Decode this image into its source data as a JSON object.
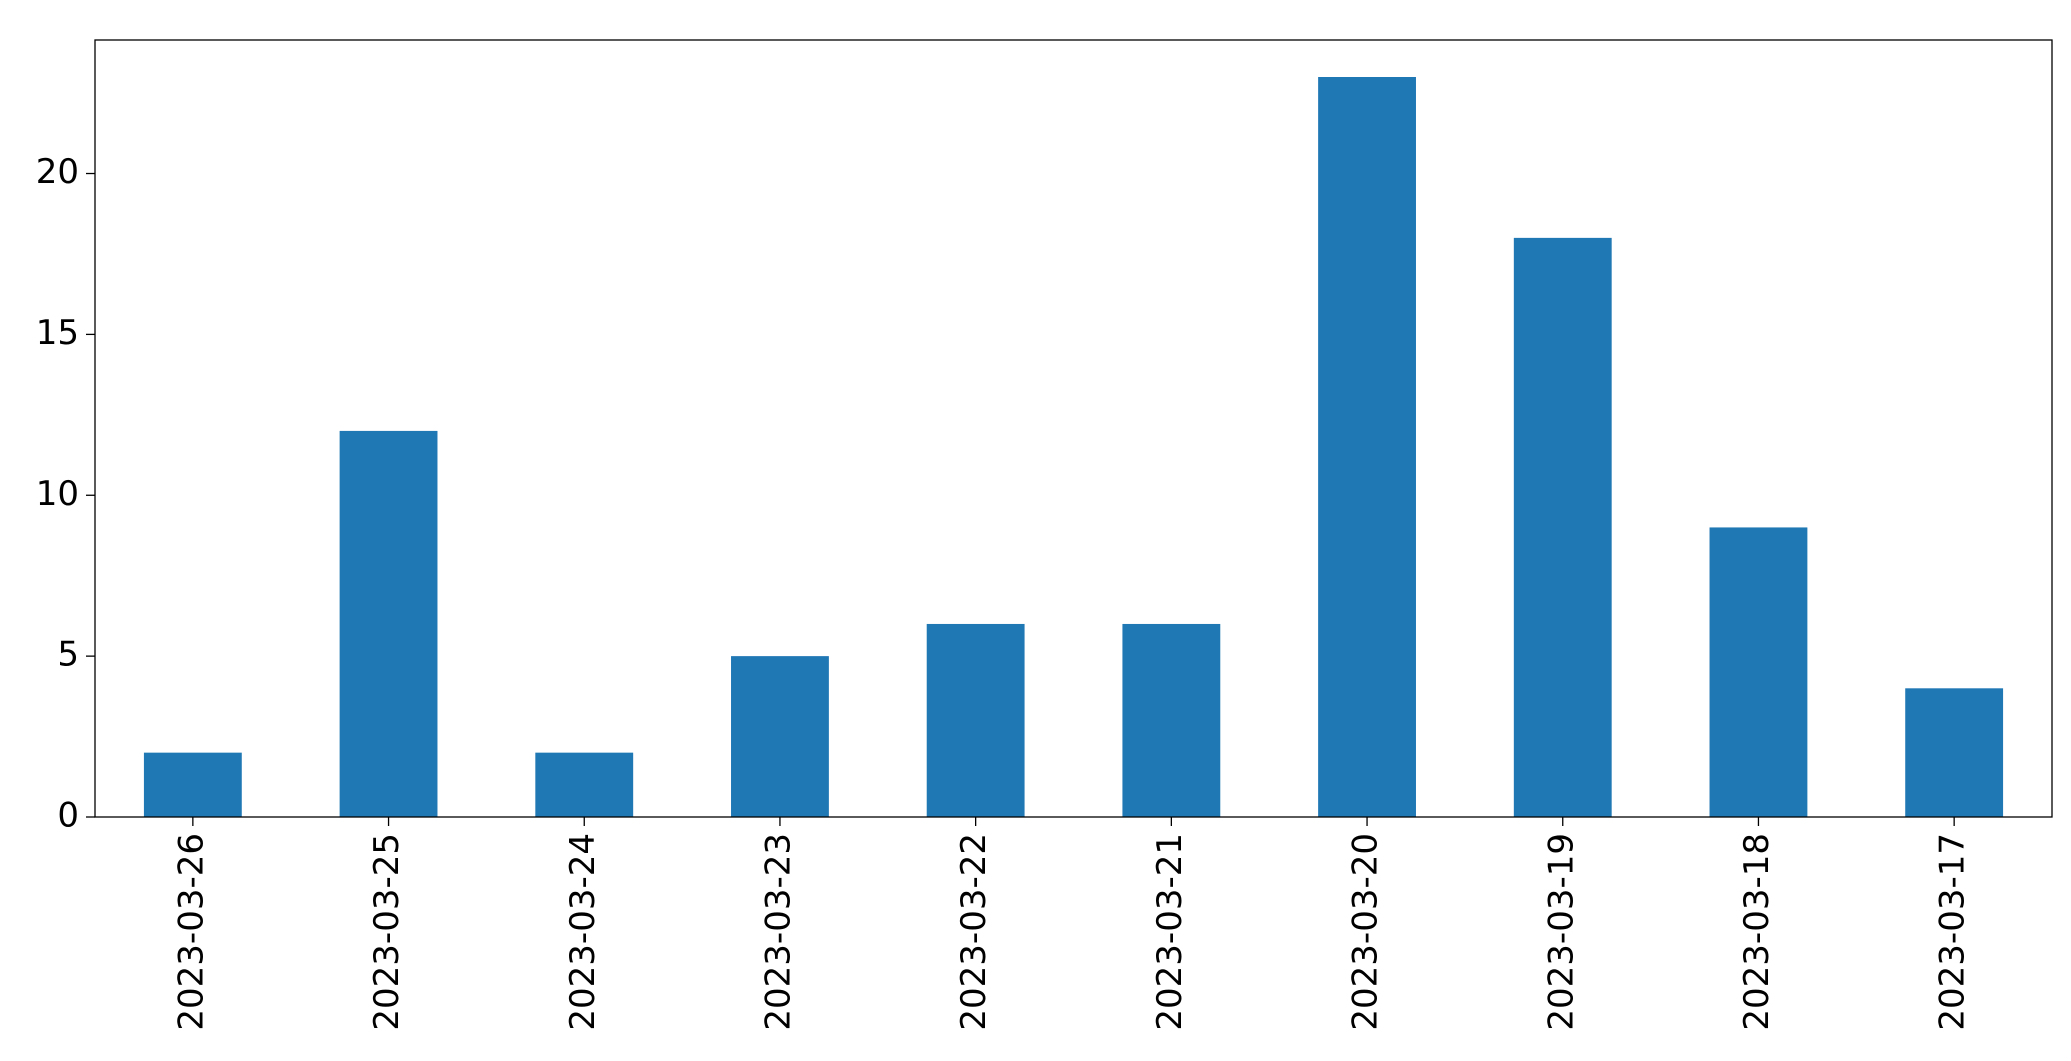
{
  "chart_data": {
    "type": "bar",
    "categories": [
      "2023-03-26",
      "2023-03-25",
      "2023-03-24",
      "2023-03-23",
      "2023-03-22",
      "2023-03-21",
      "2023-03-20",
      "2023-03-19",
      "2023-03-18",
      "2023-03-17"
    ],
    "values": [
      2,
      12,
      2,
      5,
      6,
      6,
      23,
      18,
      9,
      4
    ],
    "color": "#1f77b4",
    "ylim": [
      0,
      24.15
    ],
    "yticks": [
      0,
      5,
      10,
      15,
      20
    ],
    "grid": false
  }
}
